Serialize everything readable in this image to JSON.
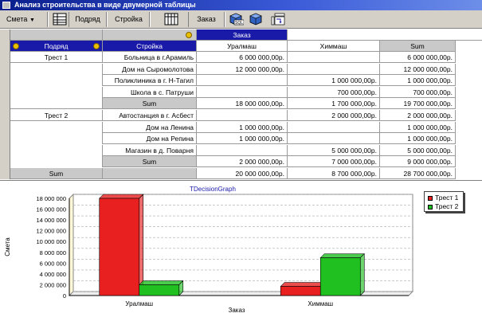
{
  "window": {
    "title": "Анализ строительства в виде двумерной таблицы"
  },
  "toolbar": {
    "smeta_label": "Смета",
    "podryad_label": "Подряд",
    "stroyka_label": "Стройка",
    "zakaz_label": "Заказ",
    "icons": [
      "table-icon",
      "table-icon",
      "cube-sql-icon",
      "cube-icon",
      "pivot-icon"
    ],
    "sql_text": "SQL"
  },
  "grid": {
    "zakaz_header": "Заказ",
    "col_podryad": "Подряд",
    "col_stroyka": "Стройка",
    "col_uralmash": "Уралмаш",
    "col_himmash": "Химмаш",
    "col_sum": "Sum",
    "rows": [
      {
        "podryad": "Трест 1",
        "stroyka": "Больница в г.Арамиль",
        "uralmash": "6 000 000,00р.",
        "himmash": "",
        "sum": "6 000 000,00р."
      },
      {
        "podryad": "",
        "stroyka": "Дом на Сыромолотова",
        "uralmash": "12 000 000,00р.",
        "himmash": "",
        "sum": "12 000 000,00р."
      },
      {
        "podryad": "",
        "stroyka": "Поликлиника в г. Н-Тагил",
        "uralmash": "",
        "himmash": "1 000 000,00р.",
        "sum": "1 000 000,00р."
      },
      {
        "podryad": "",
        "stroyka": "Школа в с. Патруши",
        "uralmash": "",
        "himmash": "700 000,00р.",
        "sum": "700 000,00р."
      },
      {
        "podryad": "",
        "stroyka": "Sum",
        "uralmash": "18 000 000,00р.",
        "himmash": "1 700 000,00р.",
        "sum": "19 700 000,00р.",
        "subtotal": true
      },
      {
        "podryad": "Трест 2",
        "stroyka": "Автостанция в г. Асбест",
        "uralmash": "",
        "himmash": "2 000 000,00р.",
        "sum": "2 000 000,00р."
      },
      {
        "podryad": "",
        "stroyka": "Дом на Ленина",
        "uralmash": "1 000 000,00р.",
        "himmash": "",
        "sum": "1 000 000,00р."
      },
      {
        "podryad": "",
        "stroyka": "Дом на Репина",
        "uralmash": "1 000 000,00р.",
        "himmash": "",
        "sum": "1 000 000,00р."
      },
      {
        "podryad": "",
        "stroyka": "Магазин в д. Поварня",
        "uralmash": "",
        "himmash": "5 000 000,00р.",
        "sum": "5 000 000,00р."
      },
      {
        "podryad": "",
        "stroyka": "Sum",
        "uralmash": "2 000 000,00р.",
        "himmash": "7 000 000,00р.",
        "sum": "9 000 000,00р.",
        "subtotal": true
      },
      {
        "podryad": "Sum",
        "stroyka": "",
        "uralmash": "20 000 000,00р.",
        "himmash": "8 700 000,00р.",
        "sum": "28 700 000,00р.",
        "grandtotal": true
      }
    ]
  },
  "chart_data": {
    "type": "bar",
    "title": "TDecisionGraph",
    "xlabel": "Заказ",
    "ylabel": "Смета",
    "categories": [
      "Уралмаш",
      "Химмаш"
    ],
    "series": [
      {
        "name": "Трест 1",
        "values": [
          18000000,
          1700000
        ],
        "color": "#e82020"
      },
      {
        "name": "Трест 2",
        "values": [
          2000000,
          7000000
        ],
        "color": "#20c020"
      }
    ],
    "ylim": [
      0,
      18000000
    ],
    "yticks": [
      "0",
      "2 000 000",
      "4 000 000",
      "6 000 000",
      "8 000 000",
      "10 000 000",
      "12 000 000",
      "14 000 000",
      "16 000 000",
      "18 000 000"
    ],
    "grid": true,
    "legend": "top-right"
  }
}
